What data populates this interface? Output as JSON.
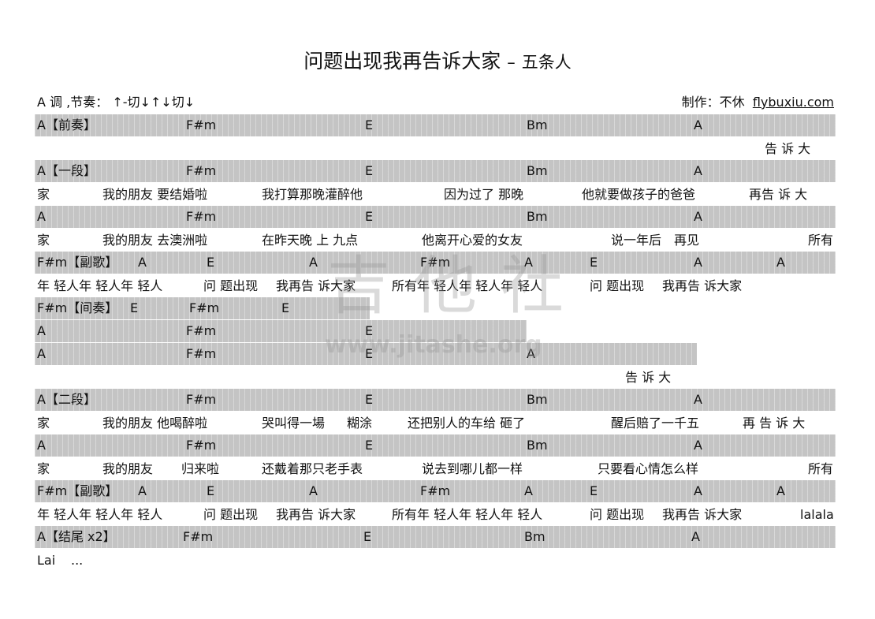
{
  "header": {
    "title": "问题出现我再告诉大家",
    "separator": "–",
    "artist": "五条人",
    "key_rhythm": "A 调 ,节奏：",
    "strum": "↑-切↓↑↓切↓",
    "credit": "制作：不休",
    "site": "flybuxiu.com"
  },
  "watermark": {
    "logo": "吉他社",
    "url": "www.jitashe.org"
  },
  "rows": [
    {
      "type": "chord",
      "segs": [
        "A【前奏】",
        "F#m",
        "E",
        "Bm",
        "A"
      ]
    },
    {
      "type": "lyric",
      "segs": [
        "告 诉 大"
      ]
    },
    {
      "type": "chord",
      "segs": [
        "A【一段】",
        "F#m",
        "E",
        "Bm",
        "A"
      ]
    },
    {
      "type": "lyric",
      "segs": [
        "家",
        "我的朋友 要结婚啦",
        "我打算那晚灌醉他",
        "因为过了 那晚",
        "他就要做孩子的爸爸",
        "再告 诉 大"
      ]
    },
    {
      "type": "chord",
      "segs": [
        "A",
        "F#m",
        "E",
        "Bm",
        "A"
      ]
    },
    {
      "type": "lyric",
      "segs": [
        "家",
        "我的朋友 去澳洲啦",
        "在昨天晚 上 九点",
        "他离开心爱的女友",
        "说一年后　再见",
        "所有"
      ]
    },
    {
      "type": "chord",
      "segs": [
        "F#m【副歌】",
        "A",
        "E",
        "A",
        "F#m",
        "A",
        "E",
        "A",
        "A"
      ]
    },
    {
      "type": "lyric",
      "segs": [
        "年 轻人年 轻人年 轻人",
        "问 题出现",
        "我再告 诉大家",
        "所有年 轻人年 轻人年 轻人",
        "问 题出现",
        "我再告 诉大家"
      ]
    },
    {
      "type": "chord",
      "segs": [
        "F#m【间奏】",
        "E",
        "F#m",
        "E"
      ]
    },
    {
      "type": "chord",
      "segs": [
        "A",
        "F#m",
        "E"
      ]
    },
    {
      "type": "chord",
      "segs": [
        "A",
        "F#m",
        "E",
        "A"
      ]
    },
    {
      "type": "lyric",
      "segs": [
        "告 诉 大"
      ]
    },
    {
      "type": "chord",
      "segs": [
        "A【二段】",
        "F#m",
        "E",
        "Bm",
        "A"
      ]
    },
    {
      "type": "lyric",
      "segs": [
        "家",
        "我的朋友 他喝醉啦",
        "哭叫得一場",
        "糊涂",
        "还把别人的车给 砸了",
        "醒后赔了一千五",
        "再 告 诉 大"
      ]
    },
    {
      "type": "chord",
      "segs": [
        "A",
        "F#m",
        "E",
        "Bm",
        "A"
      ]
    },
    {
      "type": "lyric",
      "segs": [
        "家",
        "我的朋友",
        "归来啦",
        "还戴着那只老手表",
        "说去到哪儿都一样",
        "只要看心情怎么样",
        "所有"
      ]
    },
    {
      "type": "chord",
      "segs": [
        "F#m【副歌】",
        "A",
        "E",
        "A",
        "F#m",
        "A",
        "E",
        "A",
        "A"
      ]
    },
    {
      "type": "lyric",
      "segs": [
        "年 轻人年 轻人年 轻人",
        "问 题出现",
        "我再告 诉大家",
        "所有年 轻人年 轻人年 轻人",
        "问 题出现",
        "我再告 诉大家",
        "lalala"
      ]
    },
    {
      "type": "chord",
      "segs": [
        "A【结尾 x2】",
        "F#m",
        "E",
        "Bm",
        "A"
      ]
    },
    {
      "type": "lyric",
      "segs": [
        "Lai",
        "..."
      ]
    }
  ]
}
